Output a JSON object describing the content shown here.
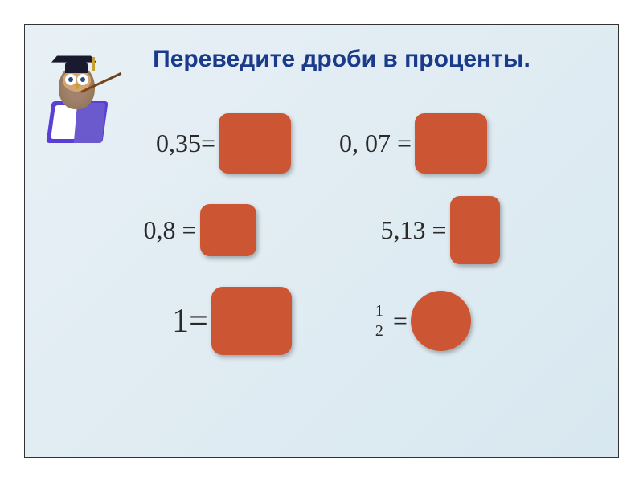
{
  "title": "Переведите дроби в проценты.",
  "problems": {
    "row1": {
      "p1": {
        "lhs": "0,35="
      },
      "p2": {
        "lhs": "0, 07 = "
      }
    },
    "row2": {
      "p1": {
        "lhs": "0,8 ="
      },
      "p2": {
        "lhs": "5,13 ="
      }
    },
    "row3": {
      "p1": {
        "lhs": "1="
      },
      "p2": {
        "numerator": "1",
        "denominator": "2",
        "eq": "="
      }
    }
  },
  "colors": {
    "title": "#1a3a8a",
    "answer_box": "#cc5533",
    "background_from": "#e8f0f5",
    "background_to": "#d8e8f0",
    "text": "#2a2a2a"
  },
  "typography": {
    "title_fontsize": 30,
    "problem_fontsize": 32,
    "fraction_fontsize": 20,
    "font_family_title": "Arial",
    "font_family_math": "Times New Roman"
  },
  "shapes": {
    "box_radius": 12,
    "circle_diameter": 75
  }
}
